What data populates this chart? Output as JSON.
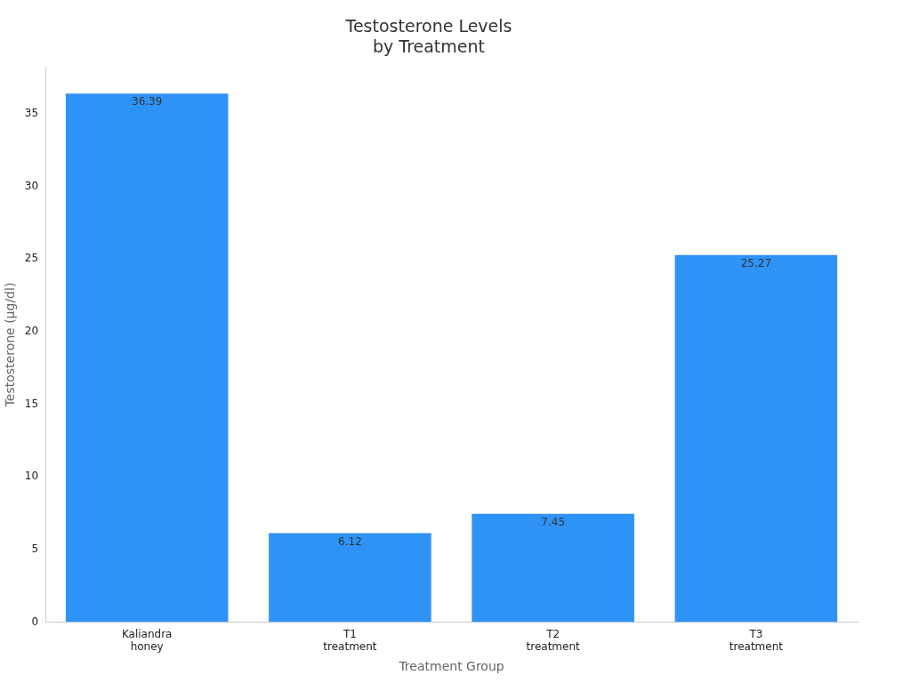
{
  "chart_data": {
    "type": "bar",
    "title": "Testosterone Levels\nby Treatment",
    "xlabel": "Treatment Group",
    "ylabel": "Testosterone (µg/dl)",
    "categories": [
      "Kaliandra honey",
      "T1 treatment",
      "T2 treatment",
      "T3 treatment"
    ],
    "values": [
      36.39,
      6.12,
      7.45,
      25.27
    ],
    "color": "#2e93f7",
    "ylim": [
      0,
      38.2
    ],
    "yticks": [
      0,
      5,
      10,
      15,
      20,
      25,
      30,
      35
    ],
    "grid": false,
    "legend": false,
    "data_labels": true
  }
}
